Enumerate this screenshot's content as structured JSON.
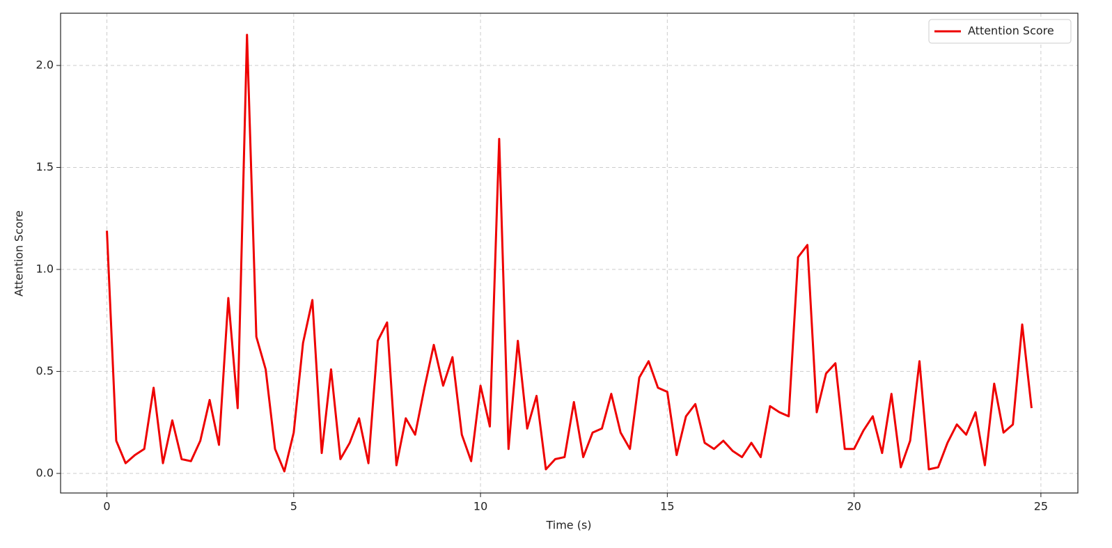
{
  "chart_data": {
    "type": "line",
    "xlabel": "Time (s)",
    "ylabel": "Attention Score",
    "x": [
      0,
      0.25,
      0.5,
      0.75,
      1,
      1.25,
      1.5,
      1.75,
      2,
      2.25,
      2.5,
      2.75,
      3,
      3.25,
      3.5,
      3.75,
      4,
      4.25,
      4.5,
      4.75,
      5,
      5.25,
      5.5,
      5.75,
      6,
      6.25,
      6.5,
      6.75,
      7,
      7.25,
      7.5,
      7.75,
      8,
      8.25,
      8.5,
      8.75,
      9,
      9.25,
      9.5,
      9.75,
      10,
      10.25,
      10.5,
      10.75,
      11,
      11.25,
      11.5,
      11.75,
      12,
      12.25,
      12.5,
      12.75,
      13,
      13.25,
      13.5,
      13.75,
      14,
      14.25,
      14.5,
      14.75,
      15,
      15.25,
      15.5,
      15.75,
      16,
      16.25,
      16.5,
      16.75,
      17,
      17.25,
      17.5,
      17.75,
      18,
      18.25,
      18.5,
      18.75,
      19,
      19.25,
      19.5,
      19.75,
      20,
      20.25,
      20.5,
      20.75,
      21,
      21.25,
      21.5,
      21.75,
      22,
      22.25,
      22.5,
      22.75,
      23,
      23.25,
      23.5,
      23.75,
      24,
      24.25,
      24.5,
      24.75
    ],
    "series": [
      {
        "name": "Attention Score",
        "color": "#ee0000",
        "values": [
          1.19,
          0.16,
          0.05,
          0.09,
          0.12,
          0.42,
          0.05,
          0.26,
          0.07,
          0.06,
          0.16,
          0.36,
          0.14,
          0.86,
          0.32,
          2.15,
          0.67,
          0.51,
          0.12,
          0.01,
          0.2,
          0.64,
          0.85,
          0.1,
          0.51,
          0.07,
          0.15,
          0.27,
          0.05,
          0.65,
          0.74,
          0.04,
          0.27,
          0.19,
          0.42,
          0.63,
          0.43,
          0.57,
          0.19,
          0.06,
          0.43,
          0.23,
          1.64,
          0.12,
          0.65,
          0.22,
          0.38,
          0.02,
          0.07,
          0.08,
          0.35,
          0.08,
          0.2,
          0.22,
          0.39,
          0.2,
          0.12,
          0.47,
          0.55,
          0.42,
          0.4,
          0.09,
          0.28,
          0.34,
          0.15,
          0.12,
          0.16,
          0.11,
          0.08,
          0.15,
          0.08,
          0.33,
          0.3,
          0.28,
          1.06,
          1.12,
          0.3,
          0.49,
          0.54,
          0.12,
          0.12,
          0.21,
          0.28,
          0.1,
          0.39,
          0.03,
          0.16,
          0.55,
          0.02,
          0.03,
          0.15,
          0.24,
          0.19,
          0.3,
          0.04,
          0.44,
          0.2,
          0.24,
          0.73,
          0.32
        ]
      }
    ],
    "xlim": [
      -1.24,
      25.99
    ],
    "ylim": [
      -0.096,
      2.256
    ],
    "xticks": [
      0,
      5,
      10,
      15,
      20,
      25
    ],
    "yticks": [
      {
        "value": 0,
        "label": "0.0"
      },
      0.5,
      {
        "value": 1,
        "label": "1.0"
      },
      1.5,
      {
        "value": 2,
        "label": "2.0"
      }
    ],
    "grid": true,
    "legend": "upper right"
  }
}
